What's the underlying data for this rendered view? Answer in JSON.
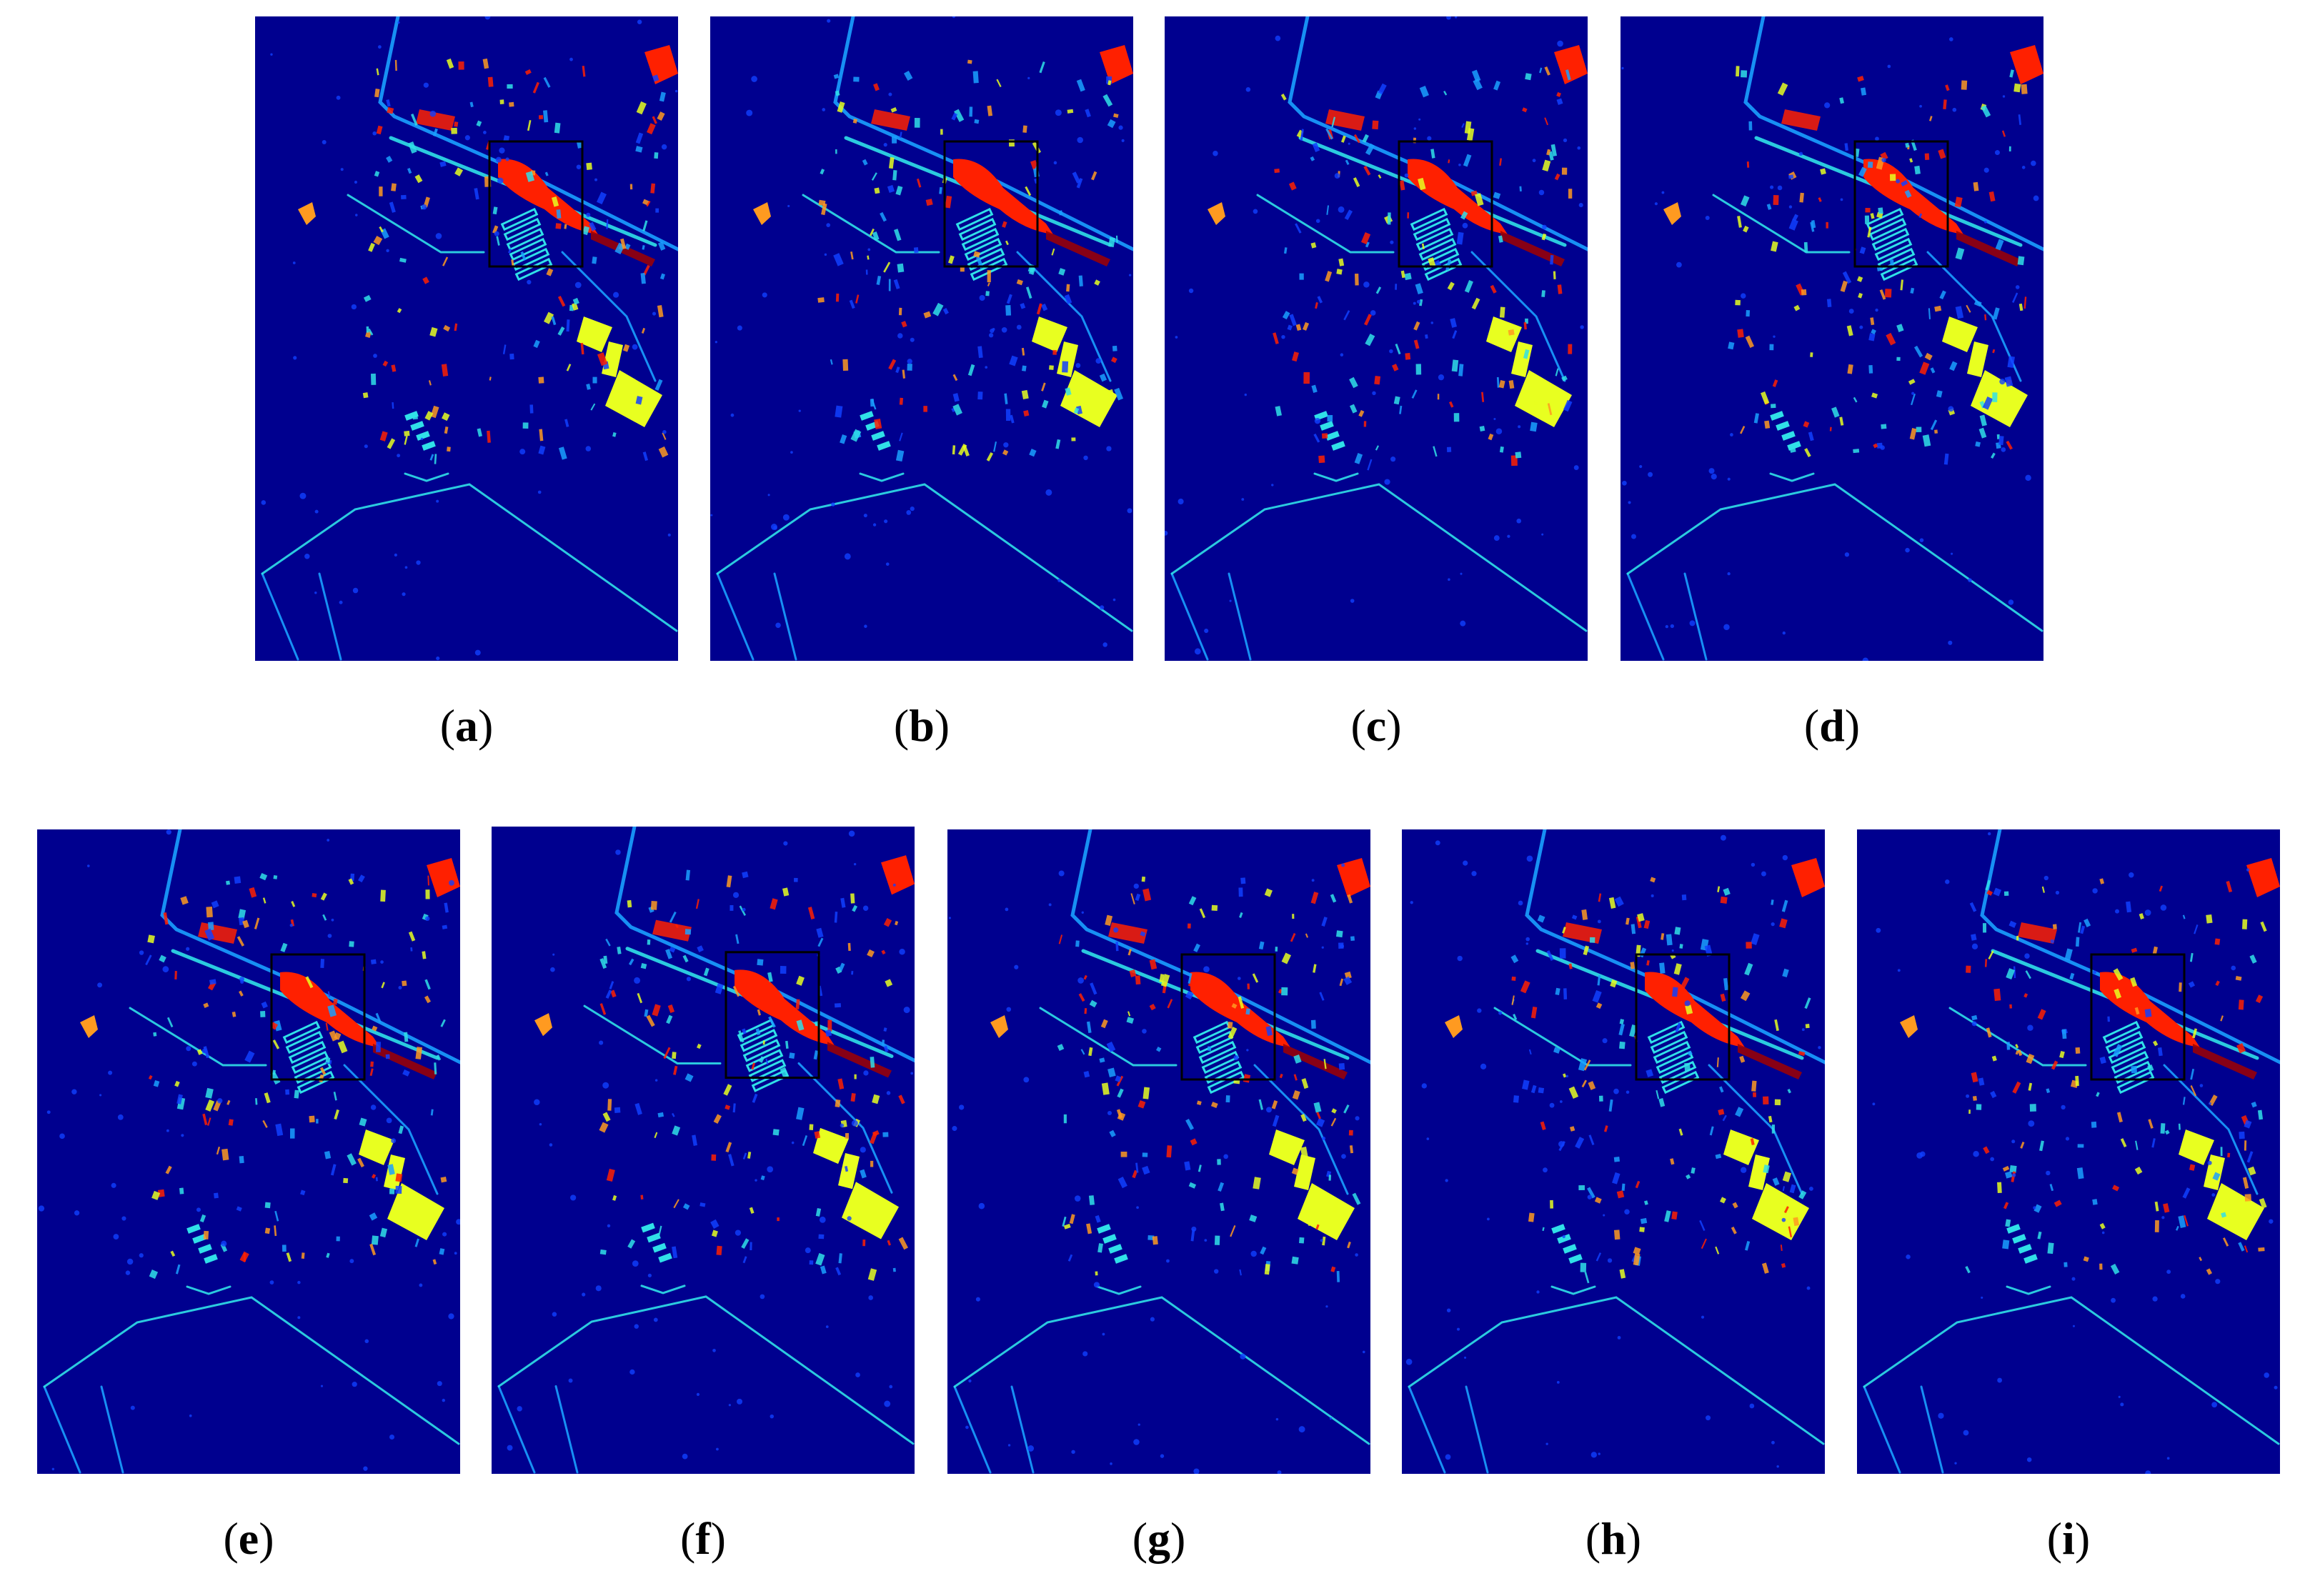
{
  "figure": {
    "panels": [
      {
        "label": "a"
      },
      {
        "label": "b"
      },
      {
        "label": "c"
      },
      {
        "label": "d"
      },
      {
        "label": "e"
      },
      {
        "label": "f"
      },
      {
        "label": "g"
      },
      {
        "label": "h"
      },
      {
        "label": "i"
      }
    ],
    "colors": {
      "background": "#00008f",
      "road": "#1aa0ff",
      "cyan": "#30e0e8",
      "red": "#ff2000",
      "dark_red": "#a00000",
      "yellow": "#e8ff20",
      "orange": "#ff9a20",
      "blue_noise": "#1040ff",
      "highlight_box": "#000000"
    }
  }
}
